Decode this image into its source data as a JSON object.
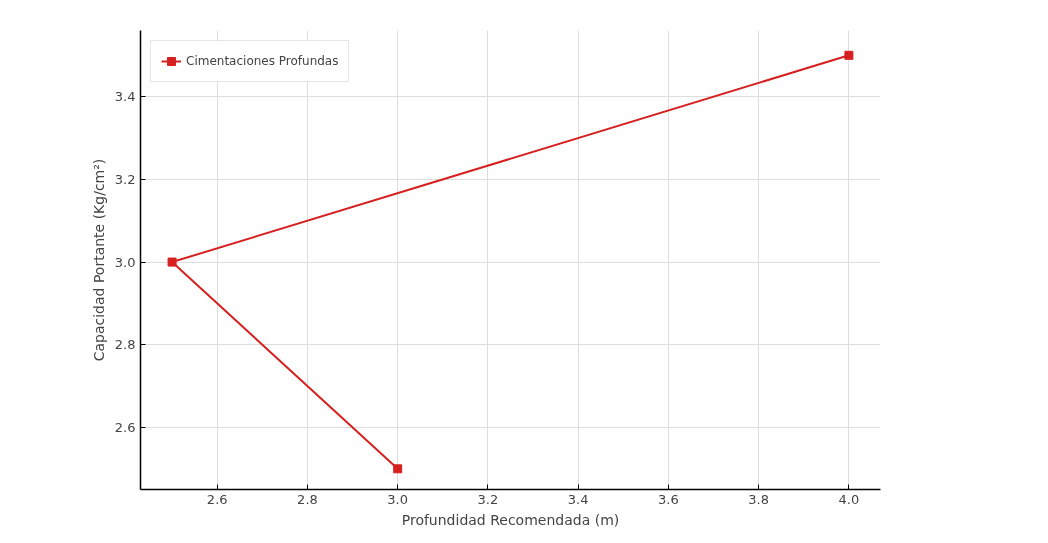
{
  "chart_data": {
    "type": "line",
    "xlabel": "Profundidad Recomendada (m)",
    "ylabel": "Capacidad Portante (Kg/cm²)",
    "x": [
      4.0,
      2.5,
      3.0
    ],
    "series": [
      {
        "name": "Cimentaciones Profundas",
        "color": "#d62020",
        "values": [
          3.5,
          3.0,
          2.5
        ]
      }
    ],
    "xlim": [
      2.43,
      4.07
    ],
    "ylim": [
      2.45,
      3.56
    ],
    "xticks": [
      2.6,
      2.8,
      {
        "value": 3,
        "label": "3.0"
      },
      3.2,
      3.4,
      3.6,
      3.8,
      {
        "value": 4,
        "label": "4.0"
      }
    ],
    "yticks": [
      2.6,
      2.8,
      {
        "value": 3,
        "label": "3.0"
      },
      3.2,
      3.4
    ],
    "grid": true,
    "legend": "top left",
    "marker": "square",
    "line_style": "solid"
  }
}
